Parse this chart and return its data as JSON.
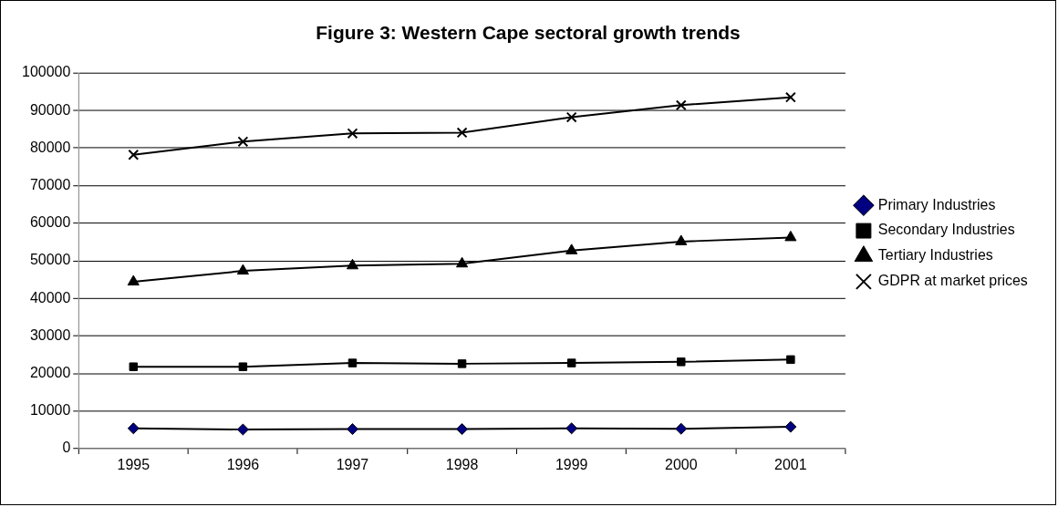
{
  "chart_data": {
    "type": "line",
    "title": "Figure 3: Western Cape sectoral growth trends",
    "categories": [
      "1995",
      "1996",
      "1997",
      "1998",
      "1999",
      "2000",
      "2001"
    ],
    "series": [
      {
        "name": "Primary Industries",
        "color": "#000080",
        "marker": "diamond",
        "values": [
          5400,
          5100,
          5200,
          5200,
          5400,
          5300,
          5800
        ]
      },
      {
        "name": "Secondary Industries",
        "color": "#000000",
        "marker": "square",
        "values": [
          21800,
          21800,
          22800,
          22600,
          22800,
          23100,
          23700
        ]
      },
      {
        "name": "Tertiary Industries",
        "color": "#000000",
        "marker": "triangle",
        "values": [
          44400,
          47300,
          48700,
          49200,
          52700,
          55100,
          56200
        ]
      },
      {
        "name": "GDPR at market prices",
        "color": "#000000",
        "marker": "cross",
        "values": [
          78200,
          81700,
          83900,
          84100,
          88200,
          91400,
          93500
        ]
      }
    ],
    "ylim": [
      0,
      100000
    ],
    "yticks": [
      0,
      10000,
      20000,
      30000,
      40000,
      50000,
      60000,
      70000,
      80000,
      90000,
      100000
    ],
    "grid": "y",
    "legend": "right"
  }
}
